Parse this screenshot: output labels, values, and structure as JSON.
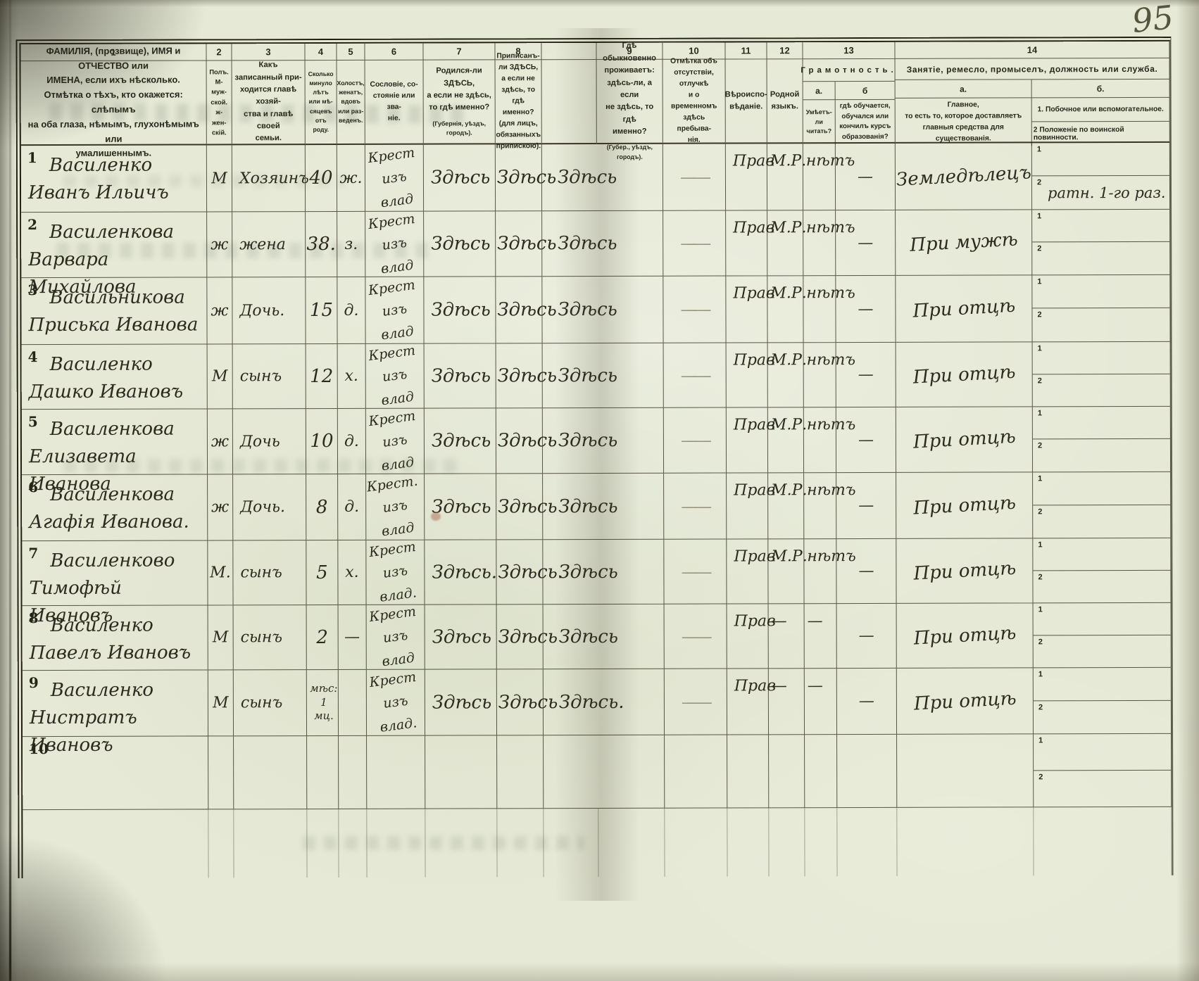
{
  "page": {
    "number": "95"
  },
  "table": {
    "column_numbers": [
      "1",
      "2",
      "3",
      "4",
      "5",
      "6",
      "7",
      "8",
      "9",
      "10",
      "11",
      "12",
      "13",
      "14"
    ],
    "headers": {
      "col1": "ФАМИЛІЯ, (прозвище), ИМЯ и ОТЧЕСТВО или\nИМЕНА, если ихъ нѣсколько.\nОтмѣтка о тѣхъ, кто окажется: слѣпымъ\nна оба глаза, нѣмымъ, глухонѣмымъ или\nумалишеннымъ.",
      "col2": "Полъ.\nМ-муж-\nской.\nж-жен-\nскій.",
      "col3": "Какъ записанный при-\nходится главѣ хозяй-\nства и главѣ своей\nсемьи.",
      "col4": "Сколько\nминуло\nлѣтъ\nили мѣ-\nсяцевъ\nотъ роду.",
      "col5": "Холостъ,\nженатъ,\nвдовъ\nили раз-\nведенъ.",
      "col6": "Сословіе, со-\nстояніе или зва-\nніе.",
      "col7": "Родился-ли ЗДѢСЬ,\nа если не здѣсь,\nто гдѣ именно?",
      "col7_note": "(Губернія, уѣздъ, городъ).",
      "col8": "Приписанъ-ли ЗДѢСЬ,\nа если не здѣсь, то гдѣ\nименно?\n(для лицъ, обязанныхъ\nприпискою).",
      "col9": "Гдѣ обыкновенно\nпроживаетъ:\nздѣсь-ли, а если\nне здѣсь, то гдѣ\nименно?",
      "col9_note": "(Губер., уѣздъ, городъ).",
      "col10": "Отмѣтка объ\nотсутствіи, отлучкѣ\nи о временномъ\nздѣсь пребыва-\nнія.",
      "col11": "Вѣроиспо-\nвѣданіе.",
      "col12": "Родной\nязыкъ.",
      "col13_title": "Грамотность.",
      "col13a_label": "a.",
      "col13b_label": "б",
      "col13a": "Умѣетъ-\nли\nчитать?",
      "col13b": "гдѣ обучается,\nобучался или\nкончилъ курсъ\nобразованія?",
      "col14_title": "Занятіе, ремесло, промыселъ, должность или служба.",
      "col14a_label": "a.",
      "col14b_label": "б.",
      "col14a": "Главное,\nто есть то, которое доставляетъ\nглавныя средства для существованія.",
      "col14b1": "1. Побочное или вспомогательное.",
      "col14b2": "2 Положеніе по воинской повинности.",
      "sub1": "1",
      "sub2": "2"
    },
    "rows": [
      {
        "num": "1",
        "name": "Василенко\nИванъ Ильичъ",
        "sex": "М",
        "relation": "Хозяинъ",
        "age": "40",
        "marital": "ж.",
        "estate": "Крест\nизъ влад",
        "born": "Здѣсь",
        "registered": "Здѣсь",
        "resides": "Здѣсь",
        "absence": "——",
        "religion": "Прав",
        "language": "М.Р.",
        "literacy": "нѣтъ",
        "education": "—",
        "occ_main": "Земледѣлецъ",
        "occ_side": "",
        "military": "ратн. 1-го раз."
      },
      {
        "num": "2",
        "name": "Василенкова\nВарвара Михайлова",
        "sex": "ж",
        "relation": "жена",
        "age": "38.",
        "marital": "з.",
        "estate": "Крест\nизъ влад",
        "born": "Здѣсь",
        "registered": "Здѣсь",
        "resides": "Здѣсь",
        "absence": "——",
        "religion": "Прав",
        "language": "М.Р.",
        "literacy": "нѣтъ",
        "education": "—",
        "occ_main": "При мужѣ",
        "occ_side": "",
        "military": ""
      },
      {
        "num": "3",
        "name": "Васильникова\nПриська Иванова",
        "sex": "ж",
        "relation": "Дочь.",
        "age": "15",
        "marital": "д.",
        "estate": "Крест\nизъ влад",
        "born": "Здѣсь",
        "registered": "Здѣсь",
        "resides": "Здѣсь",
        "absence": "——",
        "religion": "Прав",
        "language": "М.Р.",
        "literacy": "нѣтъ",
        "education": "—",
        "occ_main": "При отцѣ",
        "occ_side": "",
        "military": ""
      },
      {
        "num": "4",
        "name": "Василенко\nДашко Ивановъ",
        "sex": "М",
        "relation": "сынъ",
        "age": "12",
        "marital": "х.",
        "estate": "Крест\nизъ влад",
        "born": "Здѣсь",
        "registered": "Здѣсь",
        "resides": "Здѣсь",
        "absence": "——",
        "religion": "Прав",
        "language": "М.Р.",
        "literacy": "нѣтъ",
        "education": "—",
        "occ_main": "При отцѣ",
        "occ_side": "",
        "military": ""
      },
      {
        "num": "5",
        "name": "Василенкова\nЕлизавета Иванова",
        "sex": "ж",
        "relation": "Дочь",
        "age": "10",
        "marital": "д.",
        "estate": "Крест\nизъ влад",
        "born": "Здѣсь",
        "registered": "Здѣсь",
        "resides": "Здѣсь",
        "absence": "——",
        "religion": "Прав",
        "language": "М.Р.",
        "literacy": "нѣтъ",
        "education": "—",
        "occ_main": "При отцѣ",
        "occ_side": "",
        "military": ""
      },
      {
        "num": "6",
        "name": "Василенкова\nАгафія Иванова.",
        "sex": "ж",
        "relation": "Дочь.",
        "age": "8",
        "marital": "д.",
        "estate": "Крест.\nизъ влад",
        "born": "Здѣсь",
        "registered": "Здѣсь",
        "resides": "Здѣсь",
        "absence": "——",
        "religion": "Прав",
        "language": "М.Р.",
        "literacy": "нѣтъ",
        "education": "—",
        "occ_main": "При отцѣ",
        "occ_side": "",
        "military": ""
      },
      {
        "num": "7",
        "name": "Василенково\nТимофѣй Ивановъ",
        "sex": "М.",
        "relation": "сынъ",
        "age": "5",
        "marital": "х.",
        "estate": "Крест\nизъ влад.",
        "born": "Здѣсь.",
        "registered": "Здѣсь.",
        "resides": "Здѣсь",
        "absence": "——",
        "religion": "Прав",
        "language": "М.Р.",
        "literacy": "нѣтъ",
        "education": "—",
        "occ_main": "При отцѣ",
        "occ_side": "",
        "military": ""
      },
      {
        "num": "8",
        "name": "Василенко\nПавелъ Ивановъ",
        "sex": "М",
        "relation": "сынъ",
        "age": "2",
        "marital": "—",
        "estate": "Крест\nизъ влад",
        "born": "Здѣсь",
        "registered": "Здѣсь",
        "resides": "Здѣсь",
        "absence": "——",
        "religion": "Прав",
        "language": "—",
        "literacy": "—",
        "education": "—",
        "occ_main": "При отцѣ",
        "occ_side": "",
        "military": ""
      },
      {
        "num": "9",
        "name": "Василенко\nНистратъ Ивановъ",
        "sex": "М",
        "relation": "сынъ",
        "age": "мѣс:\n1 мц.",
        "marital": "",
        "estate": "Крест\nизъ влад.",
        "born": "Здѣсь",
        "registered": "Здѣсь",
        "resides": "Здѣсь.",
        "absence": "——",
        "religion": "Прав",
        "language": "—",
        "literacy": "—",
        "education": "—",
        "occ_main": "При отцѣ",
        "occ_side": "",
        "military": ""
      },
      {
        "num": "10",
        "name": "",
        "sex": "",
        "relation": "",
        "age": "",
        "marital": "",
        "estate": "",
        "born": "",
        "registered": "",
        "resides": "",
        "absence": "",
        "religion": "",
        "language": "",
        "literacy": "",
        "education": "",
        "occ_main": "",
        "occ_side": "",
        "military": ""
      }
    ]
  }
}
